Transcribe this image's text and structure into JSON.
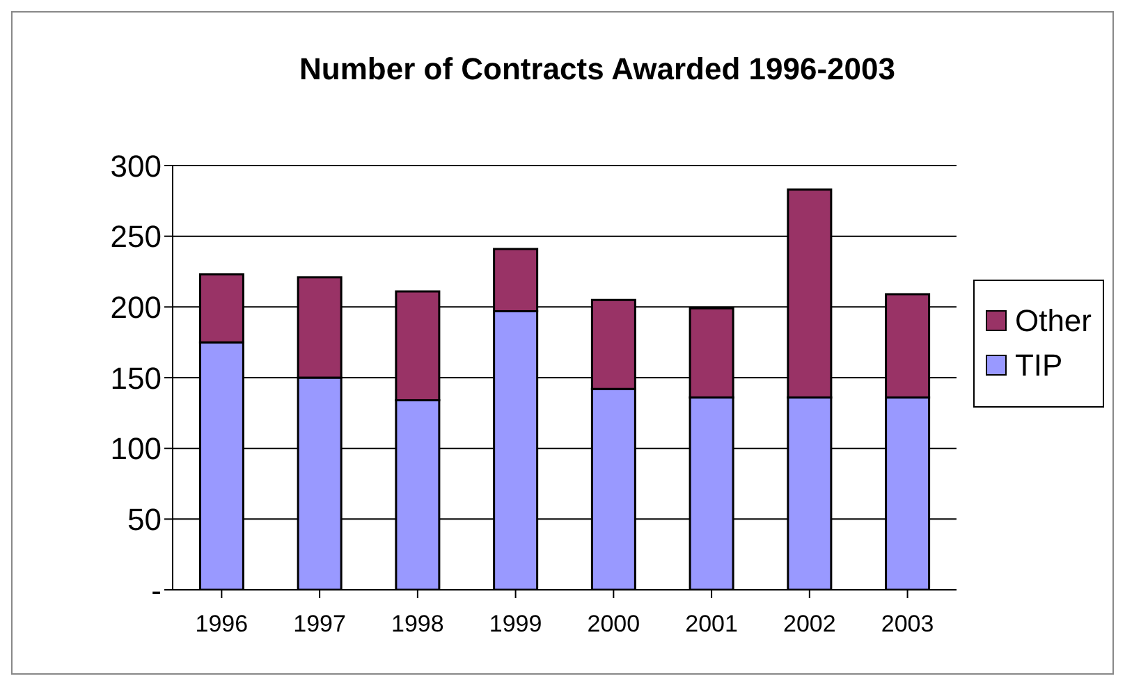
{
  "chart_data": {
    "type": "bar",
    "title": "Number of Contracts Awarded 1996-2003",
    "categories": [
      "1996",
      "1997",
      "1998",
      "1999",
      "2000",
      "2001",
      "2002",
      "2003"
    ],
    "stacked": true,
    "series": [
      {
        "name": "TIP",
        "color": "#9999ff",
        "values": [
          175,
          150,
          134,
          197,
          142,
          136,
          136,
          136
        ]
      },
      {
        "name": "Other",
        "color": "#993366",
        "values": [
          48,
          71,
          77,
          44,
          63,
          63,
          147,
          73
        ]
      }
    ],
    "ylim": [
      0,
      300
    ],
    "yticks": [
      {
        "value": 0,
        "label": "-"
      },
      50,
      100,
      150,
      200,
      250,
      300
    ],
    "grid": "y",
    "legend": "right"
  }
}
